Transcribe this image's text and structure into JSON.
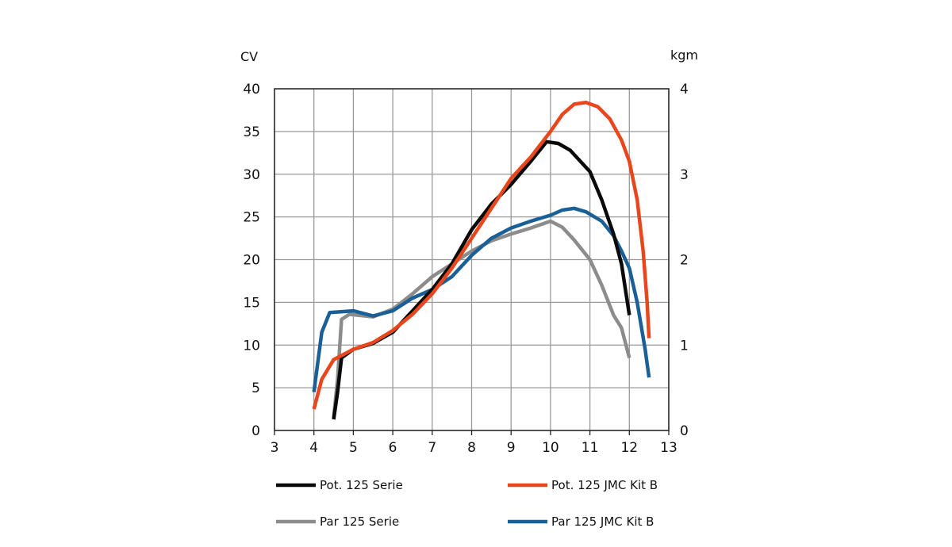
{
  "chart_data": {
    "type": "line",
    "y_left_unit": "CV",
    "y_right_unit": "kgm",
    "xlim": [
      3,
      13
    ],
    "ylim_left": [
      0,
      40
    ],
    "ylim_right": [
      0,
      4
    ],
    "x_ticks": [
      "3",
      "4",
      "5",
      "6",
      "7",
      "8",
      "9",
      "10",
      "11",
      "12",
      "13"
    ],
    "y_left_ticks": [
      "0",
      "5",
      "10",
      "15",
      "20",
      "25",
      "30",
      "35",
      "40"
    ],
    "y_right_ticks": [
      "0",
      "1",
      "2",
      "3",
      "4"
    ],
    "grid": true,
    "legend_position": "bottom",
    "series": [
      {
        "name": "Pot. 125 Serie",
        "axis": "left",
        "color": "#0a0a0a",
        "points": [
          [
            4.5,
            1.3
          ],
          [
            4.6,
            4.5
          ],
          [
            4.7,
            8.5
          ],
          [
            5.0,
            9.5
          ],
          [
            5.5,
            10.2
          ],
          [
            6.0,
            11.5
          ],
          [
            6.5,
            14.0
          ],
          [
            7.0,
            16.5
          ],
          [
            7.5,
            19.5
          ],
          [
            8.0,
            23.5
          ],
          [
            8.5,
            26.5
          ],
          [
            9.0,
            28.8
          ],
          [
            9.5,
            31.5
          ],
          [
            9.9,
            33.8
          ],
          [
            10.2,
            33.6
          ],
          [
            10.5,
            32.8
          ],
          [
            11.0,
            30.3
          ],
          [
            11.3,
            27.0
          ],
          [
            11.6,
            23.0
          ],
          [
            11.8,
            19.5
          ],
          [
            12.0,
            13.5
          ]
        ]
      },
      {
        "name": "Pot. 125 JMC Kit B",
        "axis": "left",
        "color": "#e8461c",
        "points": [
          [
            4.0,
            2.5
          ],
          [
            4.2,
            6.0
          ],
          [
            4.5,
            8.3
          ],
          [
            5.0,
            9.5
          ],
          [
            5.5,
            10.3
          ],
          [
            6.0,
            11.7
          ],
          [
            6.5,
            13.6
          ],
          [
            7.0,
            16.0
          ],
          [
            7.5,
            19.0
          ],
          [
            8.0,
            22.5
          ],
          [
            8.5,
            26.0
          ],
          [
            9.0,
            29.5
          ],
          [
            9.5,
            32.0
          ],
          [
            10.0,
            35.0
          ],
          [
            10.3,
            37.0
          ],
          [
            10.6,
            38.2
          ],
          [
            10.9,
            38.4
          ],
          [
            11.2,
            37.9
          ],
          [
            11.5,
            36.5
          ],
          [
            11.8,
            34.0
          ],
          [
            12.0,
            31.5
          ],
          [
            12.2,
            27.0
          ],
          [
            12.35,
            21.0
          ],
          [
            12.45,
            15.0
          ],
          [
            12.5,
            10.8
          ]
        ]
      },
      {
        "name": "Par 125 Serie",
        "axis": "right",
        "color": "#8c8c8c",
        "points": [
          [
            4.5,
            0.15
          ],
          [
            4.6,
            0.6
          ],
          [
            4.7,
            1.3
          ],
          [
            4.9,
            1.36
          ],
          [
            5.5,
            1.33
          ],
          [
            6.0,
            1.42
          ],
          [
            6.5,
            1.6
          ],
          [
            7.0,
            1.8
          ],
          [
            7.5,
            1.95
          ],
          [
            8.0,
            2.1
          ],
          [
            8.5,
            2.22
          ],
          [
            9.0,
            2.3
          ],
          [
            9.5,
            2.37
          ],
          [
            10.0,
            2.45
          ],
          [
            10.3,
            2.38
          ],
          [
            10.6,
            2.23
          ],
          [
            11.0,
            2.0
          ],
          [
            11.3,
            1.7
          ],
          [
            11.6,
            1.35
          ],
          [
            11.8,
            1.2
          ],
          [
            12.0,
            0.85
          ]
        ]
      },
      {
        "name": "Par 125 JMC Kit B",
        "axis": "right",
        "color": "#1b5f97",
        "points": [
          [
            4.0,
            0.45
          ],
          [
            4.2,
            1.15
          ],
          [
            4.4,
            1.38
          ],
          [
            5.0,
            1.4
          ],
          [
            5.5,
            1.34
          ],
          [
            6.0,
            1.4
          ],
          [
            6.5,
            1.55
          ],
          [
            7.0,
            1.65
          ],
          [
            7.5,
            1.8
          ],
          [
            8.0,
            2.05
          ],
          [
            8.5,
            2.25
          ],
          [
            9.0,
            2.37
          ],
          [
            9.5,
            2.45
          ],
          [
            10.0,
            2.52
          ],
          [
            10.3,
            2.58
          ],
          [
            10.6,
            2.6
          ],
          [
            10.9,
            2.56
          ],
          [
            11.3,
            2.45
          ],
          [
            11.6,
            2.28
          ],
          [
            11.8,
            2.1
          ],
          [
            12.0,
            1.9
          ],
          [
            12.2,
            1.5
          ],
          [
            12.4,
            0.95
          ],
          [
            12.5,
            0.62
          ]
        ]
      }
    ]
  }
}
